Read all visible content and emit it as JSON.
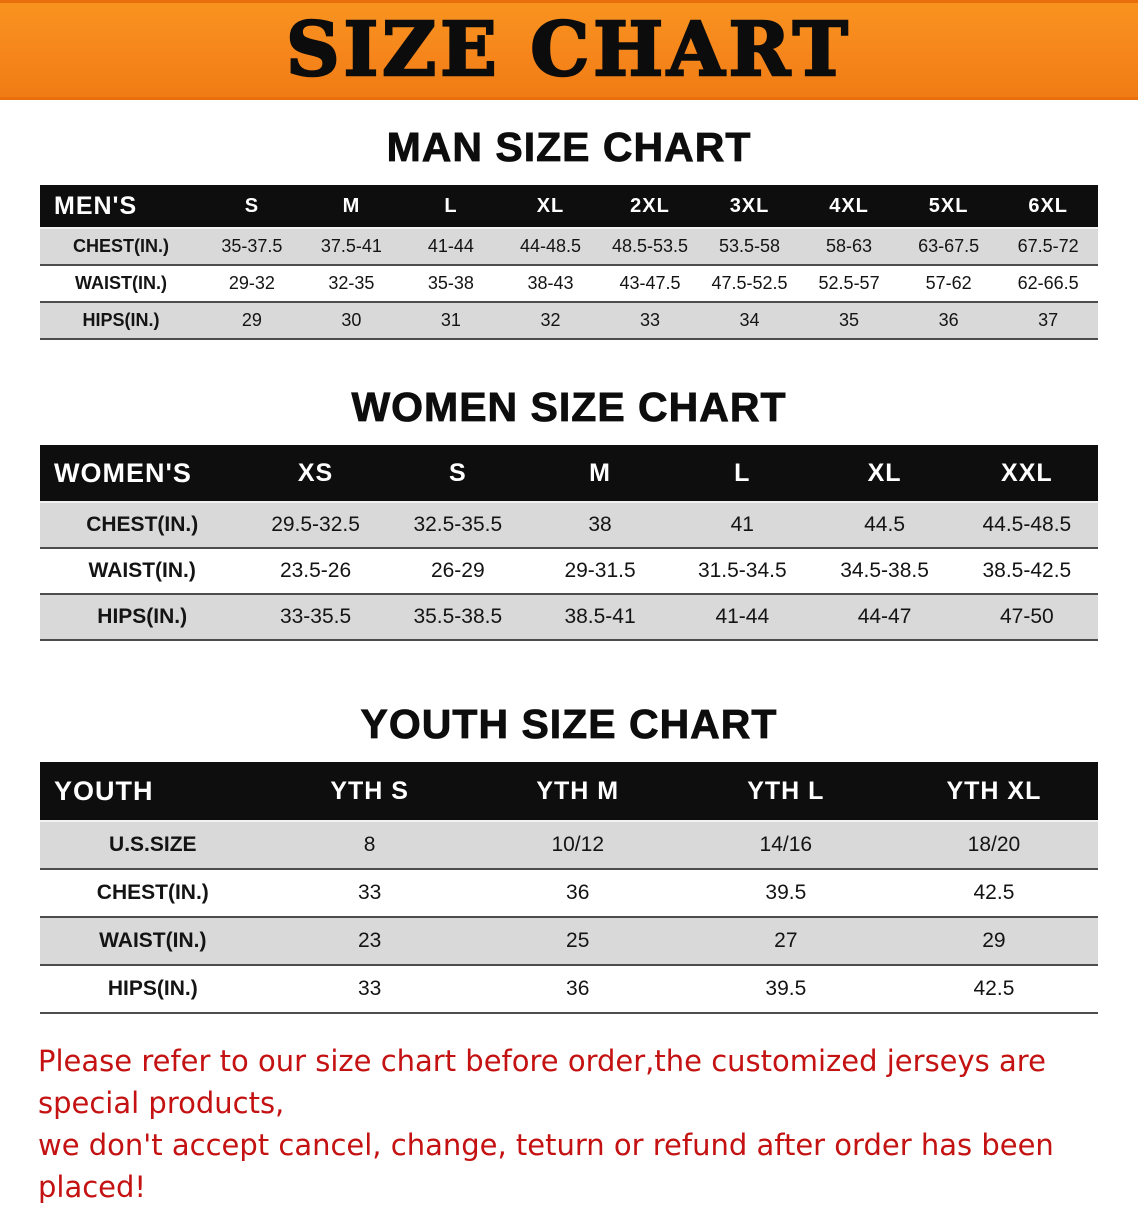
{
  "banner": {
    "title": "SIZE CHART"
  },
  "colors": {
    "banner_orange": "#f6861c",
    "table_header_black": "#0e0e0e",
    "row_stripe_gray": "#d9d9d9",
    "note_red": "#c41111"
  },
  "sections": [
    {
      "heading": "MAN SIZE CHART",
      "table": {
        "header": [
          "MEN'S",
          "S",
          "M",
          "L",
          "XL",
          "2XL",
          "3XL",
          "4XL",
          "5XL",
          "6XL"
        ],
        "rows": [
          [
            "CHEST(IN.)",
            "35-37.5",
            "37.5-41",
            "41-44",
            "44-48.5",
            "48.5-53.5",
            "53.5-58",
            "58-63",
            "63-67.5",
            "67.5-72"
          ],
          [
            "WAIST(IN.)",
            "29-32",
            "32-35",
            "35-38",
            "38-43",
            "43-47.5",
            "47.5-52.5",
            "52.5-57",
            "57-62",
            "62-66.5"
          ],
          [
            "HIPS(IN.)",
            "29",
            "30",
            "31",
            "32",
            "33",
            "34",
            "35",
            "36",
            "37"
          ]
        ]
      }
    },
    {
      "heading": "WOMEN SIZE CHART",
      "table": {
        "header": [
          "WOMEN'S",
          "XS",
          "S",
          "M",
          "L",
          "XL",
          "XXL"
        ],
        "rows": [
          [
            "CHEST(IN.)",
            "29.5-32.5",
            "32.5-35.5",
            "38",
            "41",
            "44.5",
            "44.5-48.5"
          ],
          [
            "WAIST(IN.)",
            "23.5-26",
            "26-29",
            "29-31.5",
            "31.5-34.5",
            "34.5-38.5",
            "38.5-42.5"
          ],
          [
            "HIPS(IN.)",
            "33-35.5",
            "35.5-38.5",
            "38.5-41",
            "41-44",
            "44-47",
            "47-50"
          ]
        ]
      }
    },
    {
      "heading": "YOUTH SIZE CHART",
      "table": {
        "header": [
          "YOUTH",
          "YTH S",
          "YTH M",
          "YTH L",
          "YTH XL"
        ],
        "rows": [
          [
            "U.S.SIZE",
            "8",
            "10/12",
            "14/16",
            "18/20"
          ],
          [
            "CHEST(IN.)",
            "33",
            "36",
            "39.5",
            "42.5"
          ],
          [
            "WAIST(IN.)",
            "23",
            "25",
            "27",
            "29"
          ],
          [
            "HIPS(IN.)",
            "33",
            "36",
            "39.5",
            "42.5"
          ]
        ]
      }
    }
  ],
  "footer": {
    "line1": "Please refer to our size chart before order,the customized jerseys are special products,",
    "line2": "we don't accept cancel, change, teturn or refund after order has been placed!"
  }
}
